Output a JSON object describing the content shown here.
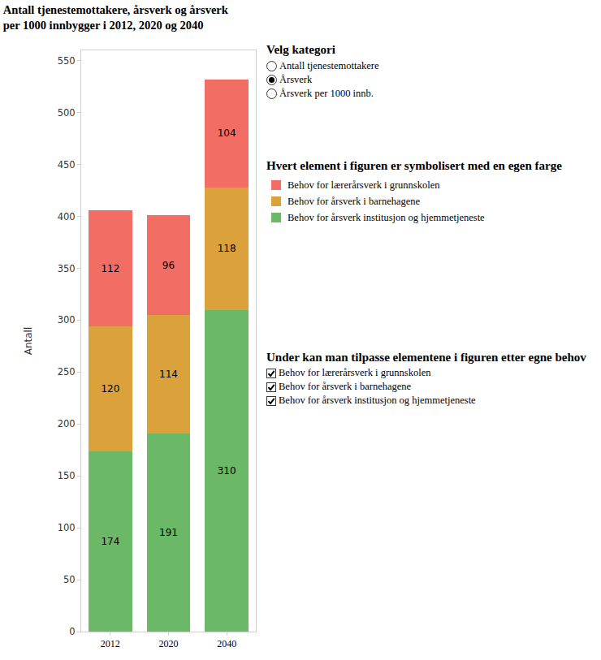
{
  "chart_data": {
    "type": "bar",
    "stacked": true,
    "data_labels": true,
    "grid": false,
    "title": [
      "Antall tjenestemottakere, årsverk og årsverk",
      "per 1000 innbygger i 2012, 2020 og 2040"
    ],
    "y_label": "Antall",
    "categories": [
      "2012",
      "2020",
      "2040"
    ],
    "series": [
      {
        "name": "Behov for årsverk institusjon og hjemmetjeneste",
        "color": "#6bb866",
        "values": [
          174,
          191,
          310
        ]
      },
      {
        "name": "Behov for årsverk i barnehagene",
        "color": "#dba23b",
        "values": [
          120,
          114,
          118
        ]
      },
      {
        "name": "Behov for lærerårsverk i grunnskolen",
        "color": "#f26d64",
        "values": [
          112,
          96,
          104
        ]
      }
    ],
    "ylim": [
      0,
      560
    ],
    "yticks": [
      0,
      50,
      100,
      150,
      200,
      250,
      300,
      350,
      400,
      450,
      500,
      550
    ],
    "controls": {
      "category_heading": "Velg kategori",
      "category_options": [
        "Antall tjenestemottakere",
        "Årsverk",
        "Årsverk per 1000 innb."
      ],
      "selected": "Årsverk",
      "legend_heading": "Hvert element i figuren er symbolisert med en egen farge",
      "filter_heading": "Under kan man tilpasse elementene i figuren etter egne behov"
    }
  }
}
